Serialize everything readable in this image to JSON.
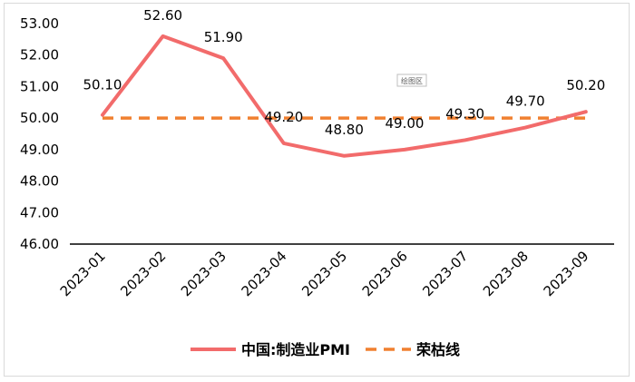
{
  "chart_data": {
    "type": "line",
    "title": "",
    "xlabel": "",
    "ylabel": "",
    "categories": [
      "2023-01",
      "2023-02",
      "2023-03",
      "2023-04",
      "2023-05",
      "2023-06",
      "2023-07",
      "2023-08",
      "2023-09"
    ],
    "yticks": [
      "46.00",
      "47.00",
      "48.00",
      "49.00",
      "50.00",
      "51.00",
      "52.00",
      "53.00"
    ],
    "ylim": [
      46,
      53
    ],
    "grid": false,
    "legend_position": "bottom",
    "series": [
      {
        "name": "中国:制造业PMI",
        "values": [
          50.1,
          52.6,
          51.9,
          49.2,
          48.8,
          49.0,
          49.3,
          49.7,
          50.2
        ],
        "labels": [
          "50.10",
          "52.60",
          "51.90",
          "49.20",
          "48.80",
          "49.00",
          "49.30",
          "49.70",
          "50.20"
        ],
        "color": "#f26b6b",
        "style": "solid"
      },
      {
        "name": "荣枯线",
        "values": [
          50,
          50,
          50,
          50,
          50,
          50,
          50,
          50,
          50
        ],
        "color": "#f08030",
        "style": "dashed"
      }
    ],
    "annotation": "绘图区"
  }
}
